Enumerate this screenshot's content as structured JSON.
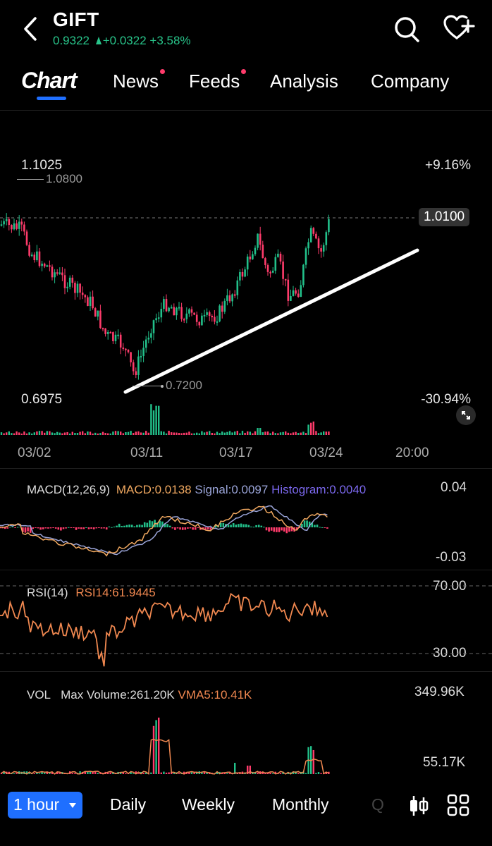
{
  "header": {
    "title": "GIFT",
    "price": "0.9322",
    "change": "+0.0322",
    "change_pct": "+3.58%"
  },
  "tabs": [
    {
      "label": "Chart",
      "active": true
    },
    {
      "label": "News",
      "badge": true
    },
    {
      "label": "Feeds",
      "badge": true
    },
    {
      "label": "Analysis"
    },
    {
      "label": "Company"
    }
  ],
  "price_chart": {
    "high_label": "1.1025",
    "high_marker": "1.0800",
    "low_label": "0.6975",
    "low_marker": "0.7200",
    "top_pct": "+9.16%",
    "bottom_pct": "-30.94%",
    "current_price_tag": "1.0100",
    "x_labels": [
      "03/02",
      "03/11",
      "03/17",
      "03/24",
      "20:00"
    ]
  },
  "macd": {
    "title": "MACD(12,26,9)",
    "macd_label": "MACD:0.0138",
    "signal_label": "Signal:0.0097",
    "hist_label": "Histogram:0.0040",
    "axis_top": "0.04",
    "axis_bottom": "-0.03"
  },
  "rsi": {
    "title": "RSI(14)",
    "value_label": "RSI14:61.9445",
    "level_high": "70.00",
    "level_low": "30.00"
  },
  "vol": {
    "title": "VOL",
    "max_label": "Max Volume:261.20K",
    "vma_label": "VMA5:10.41K",
    "axis_top": "349.96K",
    "axis_mid": "55.17K"
  },
  "bottom_bar": {
    "interval": "1 hour",
    "items": [
      "Daily",
      "Weekly",
      "Monthly",
      "Q"
    ]
  },
  "colors": {
    "up": "#22c08a",
    "down": "#ff3b6b",
    "accent": "#1f6fff",
    "macd": "#f0a860",
    "signal": "#9aa4d8",
    "rsi": "#f08850"
  }
}
